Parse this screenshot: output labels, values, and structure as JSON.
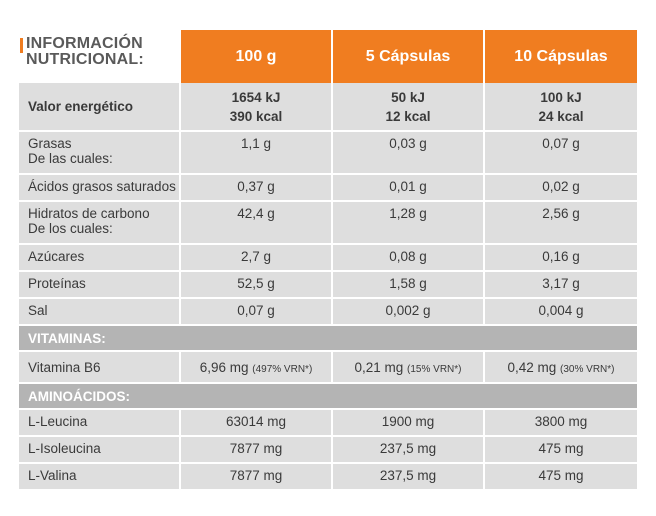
{
  "title": {
    "line1": "INFORMACIÓN",
    "line2": "NUTRICIONAL:"
  },
  "columns": [
    "100 g",
    "5 Cápsulas",
    "10 Cápsulas"
  ],
  "energy": {
    "label": "Valor energético",
    "values": [
      [
        "1654 kJ",
        "390 kcal"
      ],
      [
        "50 kJ",
        "12 kcal"
      ],
      [
        "100 kJ",
        "24 kcal"
      ]
    ]
  },
  "nutrients": [
    {
      "label": [
        "Grasas",
        "De las cuales:"
      ],
      "values": [
        "1,1 g",
        "0,03 g",
        "0,07 g"
      ]
    },
    {
      "label": [
        "Ácidos grasos saturados"
      ],
      "values": [
        "0,37 g",
        "0,01 g",
        "0,02 g"
      ]
    },
    {
      "label": [
        "Hidratos de carbono",
        "De los cuales:"
      ],
      "values": [
        "42,4 g",
        "1,28 g",
        "2,56 g"
      ]
    },
    {
      "label": [
        "Azúcares"
      ],
      "values": [
        "2,7 g",
        "0,08 g",
        "0,16 g"
      ]
    },
    {
      "label": [
        "Proteínas"
      ],
      "values": [
        "52,5 g",
        "1,58 g",
        "3,17 g"
      ]
    },
    {
      "label": [
        "Sal"
      ],
      "values": [
        "0,07 g",
        "0,002 g",
        "0,004 g"
      ]
    }
  ],
  "vitamins": {
    "heading": "VITAMINAS:",
    "rows": [
      {
        "label": "Vitamina B6",
        "values": [
          [
            "6,96 mg",
            "(497% VRN*)"
          ],
          [
            "0,21 mg",
            "(15% VRN*)"
          ],
          [
            "0,42 mg",
            "(30% VRN*)"
          ]
        ]
      }
    ]
  },
  "aminoacids": {
    "heading": "AMINOÁCIDOS:",
    "rows": [
      {
        "label": "L-Leucina",
        "values": [
          "63014 mg",
          "1900 mg",
          "3800 mg"
        ]
      },
      {
        "label": "L-Isoleucina",
        "values": [
          "7877 mg",
          "237,5 mg",
          "475 mg"
        ]
      },
      {
        "label": "L-Valina",
        "values": [
          "7877 mg",
          "237,5 mg",
          "475 mg"
        ]
      }
    ]
  },
  "colors": {
    "accent": "#f07d20",
    "row_bg": "#dedede",
    "section_bg": "#b4b4b4"
  }
}
